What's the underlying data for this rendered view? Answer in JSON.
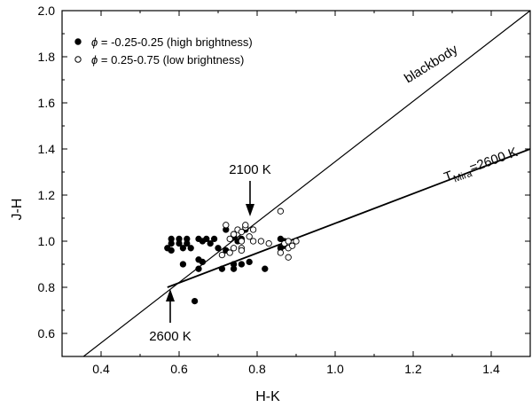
{
  "chart_data": {
    "type": "scatter",
    "title": "",
    "xlabel": "H-K",
    "ylabel": "J-H",
    "xlim": [
      0.3,
      1.5
    ],
    "ylim": [
      0.5,
      2.0
    ],
    "x_ticks": [
      0.4,
      0.6,
      0.8,
      1.0,
      1.2,
      1.4
    ],
    "x_tick_labels": [
      "0.4",
      "0.6",
      "0.8",
      "1.0",
      "1.2",
      "1.4"
    ],
    "y_ticks": [
      0.6,
      0.8,
      1.0,
      1.2,
      1.4,
      1.6,
      1.8,
      2.0
    ],
    "y_tick_labels": [
      "0.6",
      "0.8",
      "1.0",
      "1.2",
      "1.4",
      "1.6",
      "1.8",
      "2.0"
    ],
    "legend": {
      "position": "top-left",
      "symbol": "ϕ",
      "entries": [
        {
          "marker": "filled",
          "label": "= -0.25-0.25 (high brightness)"
        },
        {
          "marker": "open",
          "label": "= 0.25-0.75 (low brightness)"
        }
      ]
    },
    "series": [
      {
        "name": "ϕ = -0.25-0.25 (high brightness)",
        "marker": "filled",
        "points": [
          [
            0.58,
            1.01
          ],
          [
            0.6,
            1.01
          ],
          [
            0.62,
            1.01
          ],
          [
            0.65,
            1.01
          ],
          [
            0.58,
            0.99
          ],
          [
            0.6,
            0.99
          ],
          [
            0.62,
            0.99
          ],
          [
            0.57,
            0.97
          ],
          [
            0.61,
            0.97
          ],
          [
            0.63,
            0.97
          ],
          [
            0.58,
            0.96
          ],
          [
            0.66,
            1.0
          ],
          [
            0.67,
            1.01
          ],
          [
            0.69,
            1.01
          ],
          [
            0.68,
            0.99
          ],
          [
            0.72,
            1.05
          ],
          [
            0.77,
            1.05
          ],
          [
            0.74,
            1.02
          ],
          [
            0.7,
            0.97
          ],
          [
            0.72,
            0.96
          ],
          [
            0.75,
            1.0
          ],
          [
            0.76,
            1.01
          ],
          [
            0.61,
            0.9
          ],
          [
            0.65,
            0.92
          ],
          [
            0.66,
            0.91
          ],
          [
            0.65,
            0.88
          ],
          [
            0.71,
            0.88
          ],
          [
            0.74,
            0.9
          ],
          [
            0.74,
            0.88
          ],
          [
            0.76,
            0.9
          ],
          [
            0.78,
            0.91
          ],
          [
            0.82,
            0.88
          ],
          [
            0.64,
            0.74
          ],
          [
            0.86,
            1.01
          ],
          [
            0.87,
            1.0
          ],
          [
            0.87,
            0.98
          ],
          [
            0.86,
            0.97
          ]
        ]
      },
      {
        "name": "ϕ = 0.25-0.75 (low brightness)",
        "marker": "open",
        "points": [
          [
            0.72,
            1.07
          ],
          [
            0.75,
            1.05
          ],
          [
            0.77,
            1.06
          ],
          [
            0.79,
            1.05
          ],
          [
            0.74,
            1.03
          ],
          [
            0.76,
            1.04
          ],
          [
            0.78,
            1.02
          ],
          [
            0.73,
            1.01
          ],
          [
            0.76,
            1.0
          ],
          [
            0.79,
            1.0
          ],
          [
            0.81,
            1.0
          ],
          [
            0.74,
            0.97
          ],
          [
            0.76,
            0.97
          ],
          [
            0.73,
            0.95
          ],
          [
            0.71,
            0.94
          ],
          [
            0.76,
            0.96
          ],
          [
            0.83,
            0.99
          ],
          [
            0.86,
            0.95
          ],
          [
            0.87,
            0.99
          ],
          [
            0.88,
            1.0
          ],
          [
            0.88,
            0.97
          ],
          [
            0.88,
            0.93
          ],
          [
            0.89,
            0.98
          ],
          [
            0.9,
            1.0
          ],
          [
            0.86,
            1.13
          ],
          [
            0.77,
            1.07
          ]
        ]
      }
    ],
    "lines": [
      {
        "name": "blackbody",
        "label": "blackbody",
        "points": [
          [
            0.355,
            0.5
          ],
          [
            1.5,
            2.0
          ]
        ]
      },
      {
        "name": "T_Mira",
        "label_main": "T",
        "label_sub": "Mira",
        "label_rest": "=2600 K",
        "points": [
          [
            0.57,
            0.8
          ],
          [
            1.5,
            1.4
          ]
        ]
      }
    ],
    "annotations": [
      {
        "text": "2100 K",
        "x": 0.775,
        "y": 1.09,
        "arrow": "down"
      },
      {
        "text": "2600 K",
        "x": 0.57,
        "y": 0.8,
        "arrow": "up"
      }
    ]
  }
}
